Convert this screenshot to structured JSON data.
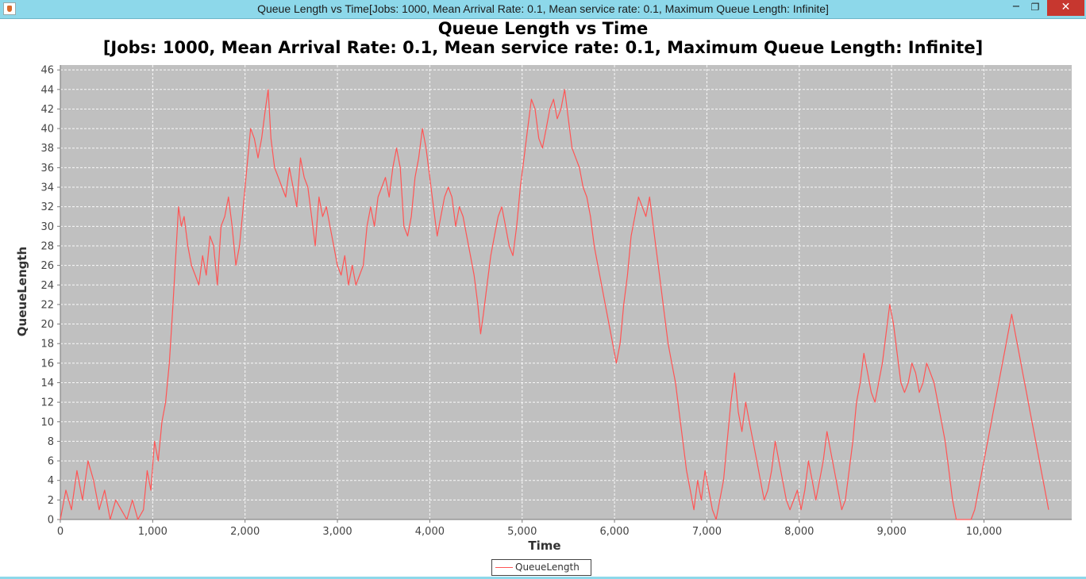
{
  "window": {
    "title": "Queue Length vs Time[Jobs: 1000, Mean Arrival Rate: 0.1, Mean service rate: 0.1, Maximum Queue Length: Infinite]",
    "minimize_glyph": "−",
    "restore_glyph": "❐",
    "close_glyph": "✕"
  },
  "chart_data": {
    "type": "line",
    "title": "Queue Length vs Time",
    "subtitle": "[Jobs: 1000, Mean Arrival Rate: 0.1, Mean service rate: 0.1, Maximum Queue Length: Infinite]",
    "xlabel": "Time",
    "ylabel": "QueueLength",
    "xlim": [
      0,
      10950
    ],
    "ylim": [
      0,
      46.5
    ],
    "x_ticks": [
      0,
      1000,
      2000,
      3000,
      4000,
      5000,
      6000,
      7000,
      8000,
      9000,
      10000
    ],
    "x_tick_labels": [
      "0",
      "1,000",
      "2,000",
      "3,000",
      "4,000",
      "5,000",
      "6,000",
      "7,000",
      "8,000",
      "9,000",
      "10,000"
    ],
    "y_ticks": [
      0,
      2,
      4,
      6,
      8,
      10,
      12,
      14,
      16,
      18,
      20,
      22,
      24,
      26,
      28,
      30,
      32,
      34,
      36,
      38,
      40,
      42,
      44,
      46
    ],
    "grid": true,
    "plot_background": "#c0c0c0",
    "legend_position": "bottom-center",
    "series": [
      {
        "name": "QueueLength",
        "color": "#ff5555",
        "points": [
          [
            0,
            0
          ],
          [
            60,
            3
          ],
          [
            120,
            1
          ],
          [
            180,
            5
          ],
          [
            240,
            2
          ],
          [
            300,
            6
          ],
          [
            360,
            4
          ],
          [
            420,
            1
          ],
          [
            480,
            3
          ],
          [
            540,
            0
          ],
          [
            600,
            2
          ],
          [
            660,
            1
          ],
          [
            720,
            0
          ],
          [
            780,
            2
          ],
          [
            840,
            0
          ],
          [
            900,
            1
          ],
          [
            940,
            5
          ],
          [
            980,
            3
          ],
          [
            1020,
            8
          ],
          [
            1060,
            6
          ],
          [
            1100,
            10
          ],
          [
            1140,
            12
          ],
          [
            1180,
            16
          ],
          [
            1220,
            22
          ],
          [
            1250,
            27
          ],
          [
            1280,
            32
          ],
          [
            1310,
            30
          ],
          [
            1340,
            31
          ],
          [
            1380,
            28
          ],
          [
            1420,
            26
          ],
          [
            1460,
            25
          ],
          [
            1500,
            24
          ],
          [
            1540,
            27
          ],
          [
            1580,
            25
          ],
          [
            1620,
            29
          ],
          [
            1660,
            28
          ],
          [
            1700,
            24
          ],
          [
            1740,
            30
          ],
          [
            1780,
            31
          ],
          [
            1820,
            33
          ],
          [
            1860,
            30
          ],
          [
            1900,
            26
          ],
          [
            1940,
            28
          ],
          [
            1980,
            32
          ],
          [
            2020,
            36
          ],
          [
            2060,
            40
          ],
          [
            2100,
            39
          ],
          [
            2140,
            37
          ],
          [
            2180,
            39
          ],
          [
            2220,
            42
          ],
          [
            2250,
            44
          ],
          [
            2280,
            39
          ],
          [
            2320,
            36
          ],
          [
            2360,
            35
          ],
          [
            2400,
            34
          ],
          [
            2440,
            33
          ],
          [
            2480,
            36
          ],
          [
            2520,
            34
          ],
          [
            2560,
            32
          ],
          [
            2600,
            37
          ],
          [
            2640,
            35
          ],
          [
            2680,
            34
          ],
          [
            2720,
            31
          ],
          [
            2760,
            28
          ],
          [
            2800,
            33
          ],
          [
            2840,
            31
          ],
          [
            2880,
            32
          ],
          [
            2920,
            30
          ],
          [
            2960,
            28
          ],
          [
            3000,
            26
          ],
          [
            3040,
            25
          ],
          [
            3080,
            27
          ],
          [
            3120,
            24
          ],
          [
            3160,
            26
          ],
          [
            3200,
            24
          ],
          [
            3240,
            25
          ],
          [
            3280,
            26
          ],
          [
            3320,
            30
          ],
          [
            3360,
            32
          ],
          [
            3400,
            30
          ],
          [
            3440,
            33
          ],
          [
            3480,
            34
          ],
          [
            3520,
            35
          ],
          [
            3560,
            33
          ],
          [
            3600,
            36
          ],
          [
            3640,
            38
          ],
          [
            3680,
            36
          ],
          [
            3720,
            30
          ],
          [
            3760,
            29
          ],
          [
            3800,
            31
          ],
          [
            3840,
            35
          ],
          [
            3880,
            37
          ],
          [
            3920,
            40
          ],
          [
            3960,
            38
          ],
          [
            4000,
            35
          ],
          [
            4040,
            32
          ],
          [
            4080,
            29
          ],
          [
            4120,
            31
          ],
          [
            4160,
            33
          ],
          [
            4200,
            34
          ],
          [
            4240,
            33
          ],
          [
            4280,
            30
          ],
          [
            4320,
            32
          ],
          [
            4360,
            31
          ],
          [
            4400,
            29
          ],
          [
            4440,
            27
          ],
          [
            4480,
            25
          ],
          [
            4520,
            22
          ],
          [
            4550,
            19
          ],
          [
            4580,
            21
          ],
          [
            4620,
            24
          ],
          [
            4660,
            27
          ],
          [
            4700,
            29
          ],
          [
            4740,
            31
          ],
          [
            4780,
            32
          ],
          [
            4820,
            30
          ],
          [
            4860,
            28
          ],
          [
            4900,
            27
          ],
          [
            4940,
            30
          ],
          [
            4980,
            34
          ],
          [
            5020,
            37
          ],
          [
            5060,
            40
          ],
          [
            5100,
            43
          ],
          [
            5140,
            42
          ],
          [
            5180,
            39
          ],
          [
            5220,
            38
          ],
          [
            5260,
            40
          ],
          [
            5300,
            42
          ],
          [
            5340,
            43
          ],
          [
            5380,
            41
          ],
          [
            5420,
            42
          ],
          [
            5460,
            44
          ],
          [
            5500,
            41
          ],
          [
            5540,
            38
          ],
          [
            5580,
            37
          ],
          [
            5620,
            36
          ],
          [
            5660,
            34
          ],
          [
            5700,
            33
          ],
          [
            5740,
            31
          ],
          [
            5780,
            28
          ],
          [
            5820,
            26
          ],
          [
            5860,
            24
          ],
          [
            5900,
            22
          ],
          [
            5940,
            20
          ],
          [
            5980,
            18
          ],
          [
            6020,
            16
          ],
          [
            6060,
            18
          ],
          [
            6100,
            22
          ],
          [
            6140,
            25
          ],
          [
            6180,
            29
          ],
          [
            6220,
            31
          ],
          [
            6260,
            33
          ],
          [
            6300,
            32
          ],
          [
            6340,
            31
          ],
          [
            6380,
            33
          ],
          [
            6420,
            30
          ],
          [
            6460,
            27
          ],
          [
            6500,
            24
          ],
          [
            6540,
            21
          ],
          [
            6580,
            18
          ],
          [
            6620,
            16
          ],
          [
            6660,
            14
          ],
          [
            6700,
            11
          ],
          [
            6740,
            8
          ],
          [
            6780,
            5
          ],
          [
            6820,
            3
          ],
          [
            6860,
            1
          ],
          [
            6900,
            4
          ],
          [
            6940,
            2
          ],
          [
            6980,
            5
          ],
          [
            7020,
            3
          ],
          [
            7060,
            1
          ],
          [
            7100,
            0
          ],
          [
            7140,
            2
          ],
          [
            7180,
            4
          ],
          [
            7220,
            8
          ],
          [
            7260,
            12
          ],
          [
            7300,
            15
          ],
          [
            7340,
            11
          ],
          [
            7380,
            9
          ],
          [
            7420,
            12
          ],
          [
            7460,
            10
          ],
          [
            7500,
            8
          ],
          [
            7540,
            6
          ],
          [
            7580,
            4
          ],
          [
            7620,
            2
          ],
          [
            7660,
            3
          ],
          [
            7700,
            5
          ],
          [
            7740,
            8
          ],
          [
            7780,
            6
          ],
          [
            7820,
            4
          ],
          [
            7860,
            2
          ],
          [
            7900,
            1
          ],
          [
            7940,
            2
          ],
          [
            7980,
            3
          ],
          [
            8020,
            1
          ],
          [
            8060,
            3
          ],
          [
            8100,
            6
          ],
          [
            8140,
            4
          ],
          [
            8180,
            2
          ],
          [
            8220,
            4
          ],
          [
            8260,
            6
          ],
          [
            8300,
            9
          ],
          [
            8340,
            7
          ],
          [
            8380,
            5
          ],
          [
            8420,
            3
          ],
          [
            8460,
            1
          ],
          [
            8500,
            2
          ],
          [
            8540,
            5
          ],
          [
            8580,
            8
          ],
          [
            8620,
            12
          ],
          [
            8660,
            14
          ],
          [
            8700,
            17
          ],
          [
            8740,
            15
          ],
          [
            8780,
            13
          ],
          [
            8820,
            12
          ],
          [
            8860,
            14
          ],
          [
            8900,
            16
          ],
          [
            8940,
            19
          ],
          [
            8980,
            22
          ],
          [
            9020,
            20
          ],
          [
            9060,
            17
          ],
          [
            9100,
            14
          ],
          [
            9140,
            13
          ],
          [
            9180,
            14
          ],
          [
            9220,
            16
          ],
          [
            9260,
            15
          ],
          [
            9300,
            13
          ],
          [
            9340,
            14
          ],
          [
            9380,
            16
          ],
          [
            9420,
            15
          ],
          [
            9460,
            14
          ],
          [
            9500,
            12
          ],
          [
            9540,
            10
          ],
          [
            9580,
            8
          ],
          [
            9620,
            5
          ],
          [
            9660,
            2
          ],
          [
            9700,
            0
          ],
          [
            9800,
            0
          ],
          [
            9860,
            0
          ],
          [
            9900,
            1
          ],
          [
            9940,
            3
          ],
          [
            9980,
            5
          ],
          [
            10020,
            7
          ],
          [
            10060,
            9
          ],
          [
            10100,
            11
          ],
          [
            10140,
            13
          ],
          [
            10180,
            15
          ],
          [
            10220,
            17
          ],
          [
            10260,
            19
          ],
          [
            10300,
            21
          ],
          [
            10340,
            19
          ],
          [
            10380,
            17
          ],
          [
            10420,
            15
          ],
          [
            10460,
            13
          ],
          [
            10500,
            11
          ],
          [
            10540,
            9
          ],
          [
            10580,
            7
          ],
          [
            10620,
            5
          ],
          [
            10660,
            3
          ],
          [
            10700,
            1
          ]
        ]
      }
    ]
  }
}
